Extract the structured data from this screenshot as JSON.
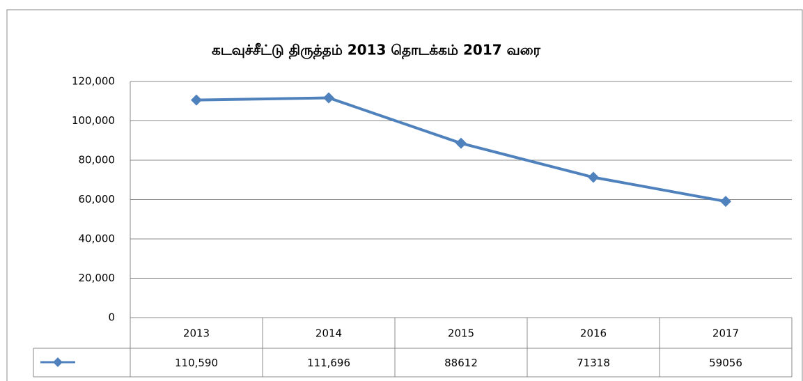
{
  "chart_data": {
    "type": "line",
    "title": "கடவுச்சீட்டு திருத்தம் 2013 தொடக்கம் 2017 வரை",
    "categories": [
      "2013",
      "2014",
      "2015",
      "2016",
      "2017"
    ],
    "values": [
      110590,
      111696,
      88612,
      71318,
      59056
    ],
    "value_labels": [
      "110,590",
      "111,696",
      "88612",
      "71318",
      "59056"
    ],
    "color": "#4f81bd",
    "ylim": [
      0,
      120000
    ],
    "yticks": [
      0,
      {
        "value": 20000,
        "label": "20,000"
      },
      {
        "value": 40000,
        "label": "40,000"
      },
      {
        "value": 60000,
        "label": "60,000"
      },
      {
        "value": 80000,
        "label": "80,000"
      },
      {
        "value": 100000,
        "label": "100,000"
      },
      {
        "value": 120000,
        "label": "120,000"
      }
    ],
    "grid": true
  }
}
